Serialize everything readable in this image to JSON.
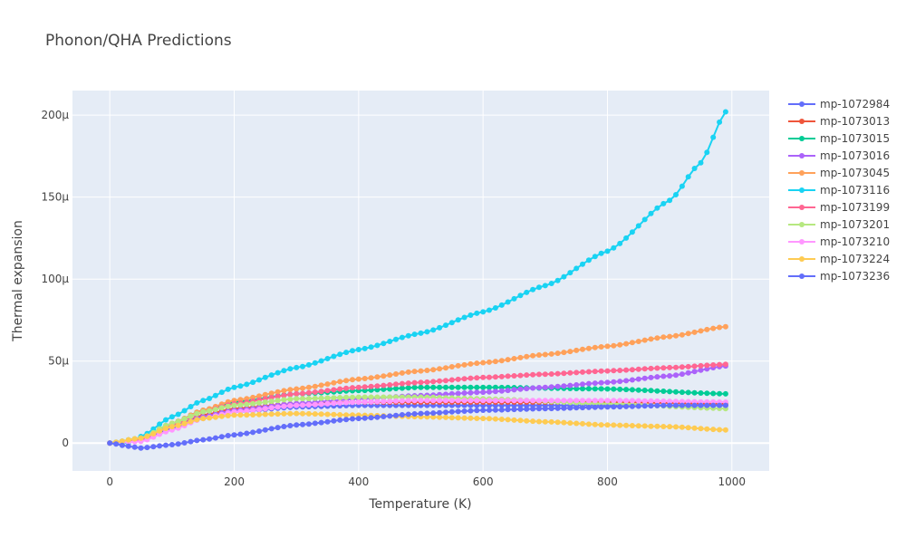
{
  "chart_data": {
    "type": "line",
    "title": "Phonon/QHA Predictions",
    "xlabel": "Temperature (K)",
    "ylabel": "Thermal expansion",
    "xlim": [
      -60,
      1060
    ],
    "ylim": [
      -1.7e-05,
      0.000215
    ],
    "xticks": [
      0,
      200,
      400,
      600,
      800,
      1000
    ],
    "xtick_labels": [
      "0",
      "200",
      "400",
      "600",
      "800",
      "1000"
    ],
    "yticks": [
      0,
      5e-05,
      0.0001,
      0.00015,
      0.0002
    ],
    "ytick_labels": [
      "0",
      "50μ",
      "100μ",
      "150μ",
      "200μ"
    ],
    "grid": true,
    "legend_position": "right",
    "x_start": 0,
    "x_step": 10,
    "x_end": 990,
    "series": [
      {
        "name": "mp-1072984",
        "color": "#636efa",
        "keypoints": [
          [
            0,
            0
          ],
          [
            50,
            2e-06
          ],
          [
            100,
            9e-06
          ],
          [
            150,
            1.5e-05
          ],
          [
            200,
            1.9e-05
          ],
          [
            300,
            2.2e-05
          ],
          [
            400,
            2.3e-05
          ],
          [
            600,
            2.3e-05
          ],
          [
            800,
            2.3e-05
          ],
          [
            990,
            2.3e-05
          ]
        ]
      },
      {
        "name": "mp-1073013",
        "color": "#ef553b",
        "keypoints": [
          [
            0,
            0
          ],
          [
            50,
            2e-06
          ],
          [
            100,
            1e-05
          ],
          [
            150,
            1.7e-05
          ],
          [
            200,
            2.1e-05
          ],
          [
            300,
            2.4e-05
          ],
          [
            400,
            2.5e-05
          ],
          [
            600,
            2.5e-05
          ],
          [
            800,
            2.5e-05
          ],
          [
            990,
            2.4e-05
          ]
        ]
      },
      {
        "name": "mp-1073015",
        "color": "#00cc96",
        "keypoints": [
          [
            0,
            0
          ],
          [
            50,
            3e-06
          ],
          [
            100,
            1.2e-05
          ],
          [
            150,
            2e-05
          ],
          [
            200,
            2.5e-05
          ],
          [
            300,
            3e-05
          ],
          [
            400,
            3.2e-05
          ],
          [
            500,
            3.4e-05
          ],
          [
            600,
            3.4e-05
          ],
          [
            800,
            3.3e-05
          ],
          [
            990,
            3e-05
          ]
        ]
      },
      {
        "name": "mp-1073016",
        "color": "#ab63fa",
        "keypoints": [
          [
            0,
            0
          ],
          [
            50,
            2e-06
          ],
          [
            100,
            1e-05
          ],
          [
            150,
            1.6e-05
          ],
          [
            200,
            2e-05
          ],
          [
            300,
            2.4e-05
          ],
          [
            400,
            2.7e-05
          ],
          [
            500,
            2.9e-05
          ],
          [
            600,
            3.1e-05
          ],
          [
            700,
            3.4e-05
          ],
          [
            800,
            3.7e-05
          ],
          [
            900,
            4.1e-05
          ],
          [
            990,
            4.7e-05
          ]
        ]
      },
      {
        "name": "mp-1073045",
        "color": "#ffa15a",
        "keypoints": [
          [
            0,
            0
          ],
          [
            50,
            3e-06
          ],
          [
            100,
            1.2e-05
          ],
          [
            150,
            2e-05
          ],
          [
            200,
            2.6e-05
          ],
          [
            300,
            3.3e-05
          ],
          [
            400,
            3.9e-05
          ],
          [
            500,
            4.4e-05
          ],
          [
            600,
            4.9e-05
          ],
          [
            700,
            5.4e-05
          ],
          [
            800,
            5.9e-05
          ],
          [
            900,
            6.5e-05
          ],
          [
            990,
            7.1e-05
          ]
        ]
      },
      {
        "name": "mp-1073116",
        "color": "#19d3f3",
        "keypoints": [
          [
            0,
            0
          ],
          [
            30,
            0
          ],
          [
            50,
            4e-06
          ],
          [
            100,
            1.6e-05
          ],
          [
            150,
            2.6e-05
          ],
          [
            200,
            3.4e-05
          ],
          [
            300,
            4.6e-05
          ],
          [
            400,
            5.7e-05
          ],
          [
            500,
            6.7e-05
          ],
          [
            600,
            8e-05
          ],
          [
            700,
            9.6e-05
          ],
          [
            800,
            0.000117
          ],
          [
            900,
            0.000148
          ],
          [
            950,
            0.000171
          ],
          [
            990,
            0.000202
          ]
        ]
      },
      {
        "name": "mp-1073199",
        "color": "#ff6692",
        "keypoints": [
          [
            0,
            0
          ],
          [
            50,
            2e-06
          ],
          [
            100,
            1.1e-05
          ],
          [
            150,
            1.9e-05
          ],
          [
            200,
            2.4e-05
          ],
          [
            300,
            3e-05
          ],
          [
            400,
            3.4e-05
          ],
          [
            500,
            3.7e-05
          ],
          [
            600,
            4e-05
          ],
          [
            700,
            4.2e-05
          ],
          [
            800,
            4.4e-05
          ],
          [
            900,
            4.6e-05
          ],
          [
            990,
            4.8e-05
          ]
        ]
      },
      {
        "name": "mp-1073201",
        "color": "#b6e880",
        "keypoints": [
          [
            0,
            0
          ],
          [
            50,
            3e-06
          ],
          [
            100,
            1.2e-05
          ],
          [
            150,
            1.9e-05
          ],
          [
            200,
            2.3e-05
          ],
          [
            300,
            2.7e-05
          ],
          [
            400,
            2.8e-05
          ],
          [
            500,
            2.8e-05
          ],
          [
            600,
            2.7e-05
          ],
          [
            800,
            2.4e-05
          ],
          [
            990,
            2.1e-05
          ]
        ]
      },
      {
        "name": "mp-1073210",
        "color": "#ff97ff",
        "keypoints": [
          [
            0,
            0
          ],
          [
            50,
            1e-06
          ],
          [
            100,
            8e-06
          ],
          [
            150,
            1.5e-05
          ],
          [
            200,
            1.9e-05
          ],
          [
            300,
            2.3e-05
          ],
          [
            400,
            2.5e-05
          ],
          [
            500,
            2.6e-05
          ],
          [
            600,
            2.6e-05
          ],
          [
            800,
            2.6e-05
          ],
          [
            990,
            2.5e-05
          ]
        ]
      },
      {
        "name": "mp-1073224",
        "color": "#fecb52",
        "keypoints": [
          [
            0,
            0
          ],
          [
            50,
            3e-06
          ],
          [
            100,
            1e-05
          ],
          [
            150,
            1.5e-05
          ],
          [
            200,
            1.7e-05
          ],
          [
            300,
            1.8e-05
          ],
          [
            400,
            1.7e-05
          ],
          [
            500,
            1.6e-05
          ],
          [
            600,
            1.5e-05
          ],
          [
            700,
            1.3e-05
          ],
          [
            800,
            1.1e-05
          ],
          [
            900,
            1e-05
          ],
          [
            990,
            8e-06
          ]
        ]
      },
      {
        "name": "mp-1073236",
        "color": "#636efa",
        "keypoints": [
          [
            0,
            0
          ],
          [
            30,
            -2e-06
          ],
          [
            50,
            -3e-06
          ],
          [
            100,
            -1e-06
          ],
          [
            150,
            2e-06
          ],
          [
            200,
            5e-06
          ],
          [
            300,
            1.1e-05
          ],
          [
            400,
            1.5e-05
          ],
          [
            500,
            1.8e-05
          ],
          [
            600,
            2e-05
          ],
          [
            700,
            2.1e-05
          ],
          [
            800,
            2.2e-05
          ],
          [
            900,
            2.3e-05
          ],
          [
            990,
            2.3e-05
          ]
        ]
      }
    ]
  }
}
